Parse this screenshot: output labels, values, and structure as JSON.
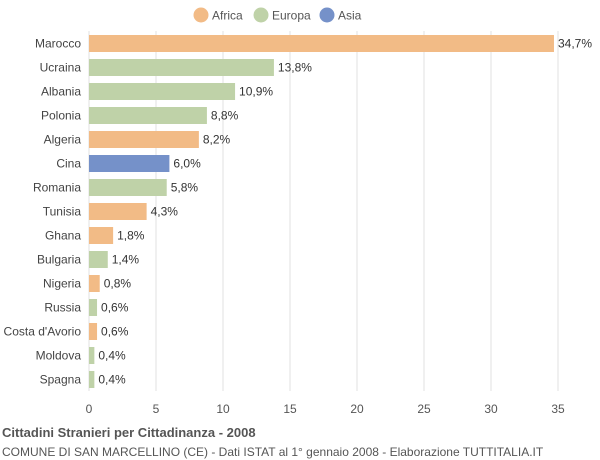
{
  "chart_data": {
    "type": "bar",
    "orientation": "horizontal",
    "title": "Cittadini Stranieri per Cittadinanza - 2008",
    "subtitle": "COMUNE DI SAN MARCELLINO (CE) - Dati ISTAT al 1° gennaio 2008 - Elaborazione TUTTITALIA.IT",
    "xlim": [
      0,
      35
    ],
    "xticks": [
      0,
      5,
      10,
      15,
      20,
      25,
      30,
      35
    ],
    "grid": true,
    "legend_position": "top-center",
    "legend": [
      {
        "name": "Africa",
        "color": "#f2bb86"
      },
      {
        "name": "Europa",
        "color": "#bfd2a8"
      },
      {
        "name": "Asia",
        "color": "#7591c9"
      }
    ],
    "categories": [
      "Marocco",
      "Ucraina",
      "Albania",
      "Polonia",
      "Algeria",
      "Cina",
      "Romania",
      "Tunisia",
      "Ghana",
      "Bulgaria",
      "Nigeria",
      "Russia",
      "Costa d'Avorio",
      "Moldova",
      "Spagna"
    ],
    "values": [
      34.7,
      13.8,
      10.9,
      8.8,
      8.2,
      6.0,
      5.8,
      4.3,
      1.8,
      1.4,
      0.8,
      0.6,
      0.6,
      0.4,
      0.4
    ],
    "value_labels": [
      "34,7%",
      "13,8%",
      "10,9%",
      "8,8%",
      "8,2%",
      "6,0%",
      "5,8%",
      "4,3%",
      "1,8%",
      "1,4%",
      "0,8%",
      "0,6%",
      "0,6%",
      "0,4%",
      "0,4%"
    ],
    "groups": [
      "Africa",
      "Europa",
      "Europa",
      "Europa",
      "Africa",
      "Asia",
      "Europa",
      "Africa",
      "Africa",
      "Europa",
      "Africa",
      "Europa",
      "Africa",
      "Europa",
      "Europa"
    ]
  }
}
